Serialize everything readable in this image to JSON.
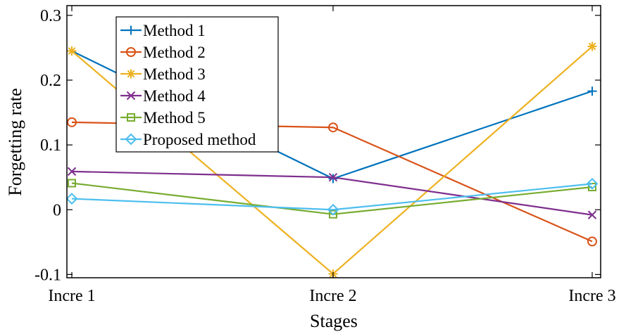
{
  "chart_data": {
    "type": "line",
    "title": "",
    "xlabel": "Stages",
    "ylabel": "Forgetting rate",
    "categories": [
      "Incre 1",
      "Incre 2",
      "Incre 3"
    ],
    "ylim": [
      -0.105,
      0.315
    ],
    "yticks": [
      -0.1,
      0,
      0.1,
      0.2,
      0.3
    ],
    "ytick_labels": [
      "-0.1",
      "0",
      "0.1",
      "0.2",
      "0.3"
    ],
    "grid": false,
    "legend_position": "top-left",
    "series": [
      {
        "name": "Method 1",
        "values": [
          0.245,
          0.048,
          0.183
        ],
        "color": "#0072BD",
        "marker": "plus"
      },
      {
        "name": "Method 2",
        "values": [
          0.135,
          0.127,
          -0.049
        ],
        "color": "#D95319",
        "marker": "circle"
      },
      {
        "name": "Method 3",
        "values": [
          0.245,
          -0.099,
          0.252
        ],
        "color": "#EDB120",
        "marker": "asterisk"
      },
      {
        "name": "Method 4",
        "values": [
          0.059,
          0.05,
          -0.008
        ],
        "color": "#7E2F8E",
        "marker": "x"
      },
      {
        "name": "Method 5",
        "values": [
          0.041,
          -0.007,
          0.035
        ],
        "color": "#77AC30",
        "marker": "square"
      },
      {
        "name": "Proposed method",
        "values": [
          0.017,
          0.0,
          0.04
        ],
        "color": "#4DBEEE",
        "marker": "diamond"
      }
    ]
  }
}
